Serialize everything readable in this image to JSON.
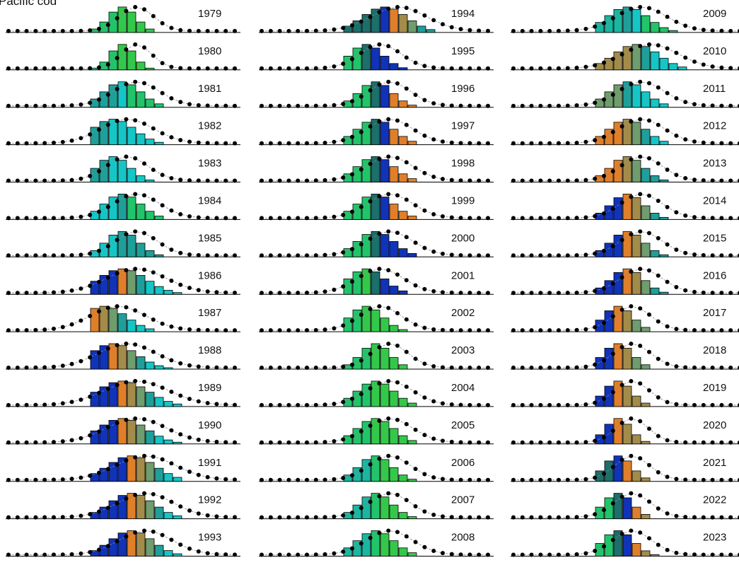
{
  "figure": {
    "title": "Pacific cod"
  },
  "legend": [],
  "chart_data": {
    "type": "bar",
    "title": "Pacific cod",
    "xlabel": "",
    "ylabel": "",
    "overlay": "points-with-dashed-line",
    "bar_outline": "#000000",
    "palette": [
      "#1133b8",
      "#e07f2a",
      "#a38c4a",
      "#6f9d6e",
      "#1f9f9a",
      "#16c6c6",
      "#1c6f6a",
      "#1ab6a0",
      "#22c46a",
      "#34c84a"
    ],
    "columns": [
      {
        "years": [
          "1979",
          "1980",
          "1981",
          "1982",
          "1983",
          "1984",
          "1985",
          "1986",
          "1987",
          "1988",
          "1989",
          "1990",
          "1991",
          "1992",
          "1993"
        ]
      },
      {
        "years": [
          "1994",
          "1995",
          "1996",
          "1997",
          "1998",
          "1999",
          "2000",
          "2001",
          "2002",
          "2003",
          "2004",
          "2005",
          "2006",
          "2007",
          "2008"
        ]
      },
      {
        "years": [
          "2009",
          "2010",
          "2011",
          "2012",
          "2013",
          "2014",
          "2015",
          "2016",
          "2017",
          "2018",
          "2019",
          "2020",
          "2021",
          "2022",
          "2023"
        ]
      }
    ],
    "panels": [
      {
        "year": "1979",
        "mode": 3,
        "spread": 1.5,
        "skew": 0,
        "pal": [
          8,
          9
        ]
      },
      {
        "year": "1980",
        "mode": 3,
        "spread": 1.3,
        "skew": 0,
        "pal": [
          8,
          9
        ]
      },
      {
        "year": "1981",
        "mode": 3,
        "spread": 2.0,
        "skew": 0,
        "pal": [
          4,
          5,
          8
        ]
      },
      {
        "year": "1982",
        "mode": 2,
        "spread": 2.3,
        "skew": 0,
        "pal": [
          4,
          5
        ]
      },
      {
        "year": "1983",
        "mode": 2,
        "spread": 1.8,
        "skew": 0,
        "pal": [
          4,
          5
        ]
      },
      {
        "year": "1984",
        "mode": 3,
        "spread": 2.0,
        "skew": 0,
        "pal": [
          5,
          4,
          8
        ]
      },
      {
        "year": "1985",
        "mode": 3,
        "spread": 1.8,
        "skew": 0,
        "pal": [
          5,
          4
        ]
      },
      {
        "year": "1986",
        "mode": 3,
        "spread": 2.6,
        "skew": 0,
        "pal": [
          0,
          1,
          3,
          4,
          5
        ]
      },
      {
        "year": "1987",
        "mode": 1,
        "spread": 2.4,
        "skew": 0,
        "pal": [
          1,
          2,
          3,
          4,
          5
        ]
      },
      {
        "year": "1988",
        "mode": 2,
        "spread": 2.5,
        "skew": 0,
        "pal": [
          0,
          1,
          2,
          3,
          4,
          5
        ]
      },
      {
        "year": "1989",
        "mode": 3,
        "spread": 2.8,
        "skew": 0,
        "pal": [
          0,
          1,
          2,
          3,
          4,
          5
        ]
      },
      {
        "year": "1990",
        "mode": 3,
        "spread": 2.6,
        "skew": 0,
        "pal": [
          0,
          1,
          2,
          3,
          4,
          5
        ]
      },
      {
        "year": "1991",
        "mode": 4,
        "spread": 2.6,
        "skew": 0,
        "pal": [
          0,
          1,
          2,
          3,
          4,
          5
        ]
      },
      {
        "year": "1992",
        "mode": 4,
        "spread": 2.4,
        "skew": 0,
        "pal": [
          0,
          1,
          2,
          3,
          4,
          5
        ]
      },
      {
        "year": "1993",
        "mode": 4,
        "spread": 2.3,
        "skew": 0,
        "pal": [
          0,
          1,
          2,
          3,
          4,
          5
        ]
      },
      {
        "year": "1994",
        "mode": 4,
        "spread": 2.4,
        "skew": 0,
        "pal": [
          6,
          0,
          1,
          2,
          3,
          4
        ]
      },
      {
        "year": "1995",
        "mode": 2,
        "spread": 1.8,
        "skew": 0,
        "pal": [
          8,
          6,
          0
        ]
      },
      {
        "year": "1996",
        "mode": 3,
        "spread": 1.8,
        "skew": 0,
        "pal": [
          8,
          6,
          0,
          1
        ]
      },
      {
        "year": "1997",
        "mode": 3,
        "spread": 2.0,
        "skew": 0,
        "pal": [
          8,
          6,
          0,
          1
        ]
      },
      {
        "year": "1998",
        "mode": 3,
        "spread": 2.0,
        "skew": 0,
        "pal": [
          8,
          6,
          0,
          1
        ]
      },
      {
        "year": "1999",
        "mode": 3,
        "spread": 2.0,
        "skew": 0,
        "pal": [
          8,
          6,
          0,
          1
        ]
      },
      {
        "year": "2000",
        "mode": 3,
        "spread": 2.0,
        "skew": 0,
        "pal": [
          8,
          6,
          0
        ]
      },
      {
        "year": "2001",
        "mode": 2,
        "spread": 2.0,
        "skew": 0,
        "pal": [
          8,
          9,
          6,
          0
        ]
      },
      {
        "year": "2002",
        "mode": 2,
        "spread": 1.8,
        "skew": 0,
        "pal": [
          8,
          9
        ]
      },
      {
        "year": "2003",
        "mode": 3,
        "spread": 1.6,
        "skew": 0,
        "pal": [
          8,
          9
        ]
      },
      {
        "year": "2004",
        "mode": 3,
        "spread": 2.0,
        "skew": 0,
        "pal": [
          8,
          9
        ]
      },
      {
        "year": "2005",
        "mode": 3,
        "spread": 2.0,
        "skew": 0,
        "pal": [
          8,
          9
        ]
      },
      {
        "year": "2006",
        "mode": 3,
        "spread": 1.8,
        "skew": 0,
        "pal": [
          7,
          8,
          9
        ]
      },
      {
        "year": "2007",
        "mode": 3,
        "spread": 1.8,
        "skew": 0,
        "pal": [
          7,
          8,
          9
        ]
      },
      {
        "year": "2008",
        "mode": 3,
        "spread": 2.0,
        "skew": 0,
        "pal": [
          7,
          8,
          9
        ]
      },
      {
        "year": "2009",
        "mode": 3,
        "spread": 2.2,
        "skew": 0,
        "pal": [
          7,
          4,
          5,
          8
        ]
      },
      {
        "year": "2010",
        "mode": 4,
        "spread": 2.4,
        "skew": 0,
        "pal": [
          2,
          3,
          4,
          5
        ]
      },
      {
        "year": "2011",
        "mode": 3,
        "spread": 2.0,
        "skew": 0,
        "pal": [
          3,
          4,
          5
        ]
      },
      {
        "year": "2012",
        "mode": 3,
        "spread": 2.0,
        "skew": 0,
        "pal": [
          1,
          2,
          3,
          4,
          5
        ]
      },
      {
        "year": "2013",
        "mode": 3,
        "spread": 1.8,
        "skew": 0,
        "pal": [
          1,
          2,
          3,
          4
        ]
      },
      {
        "year": "2014",
        "mode": 3,
        "spread": 1.8,
        "skew": 0,
        "pal": [
          0,
          1,
          2,
          3,
          4
        ]
      },
      {
        "year": "2015",
        "mode": 3,
        "spread": 1.8,
        "skew": 0,
        "pal": [
          0,
          1,
          2,
          3,
          4
        ]
      },
      {
        "year": "2016",
        "mode": 3,
        "spread": 1.8,
        "skew": 0,
        "pal": [
          0,
          1,
          2,
          3,
          4
        ]
      },
      {
        "year": "2017",
        "mode": 2,
        "spread": 1.6,
        "skew": 0,
        "pal": [
          0,
          1,
          2,
          3
        ]
      },
      {
        "year": "2018",
        "mode": 2,
        "spread": 1.6,
        "skew": 0,
        "pal": [
          0,
          1,
          2,
          3
        ]
      },
      {
        "year": "2019",
        "mode": 2,
        "spread": 1.5,
        "skew": 0,
        "pal": [
          0,
          1,
          2
        ]
      },
      {
        "year": "2020",
        "mode": 2,
        "spread": 1.4,
        "skew": 0,
        "pal": [
          0,
          1,
          2
        ]
      },
      {
        "year": "2021",
        "mode": 2,
        "spread": 1.5,
        "skew": 0,
        "pal": [
          6,
          0,
          1,
          2
        ]
      },
      {
        "year": "2022",
        "mode": 2,
        "spread": 1.6,
        "skew": 0,
        "pal": [
          8,
          6,
          0,
          1,
          2
        ]
      },
      {
        "year": "2023",
        "mode": 2,
        "spread": 1.7,
        "skew": 0,
        "pal": [
          8,
          6,
          0,
          1,
          2
        ]
      }
    ]
  }
}
